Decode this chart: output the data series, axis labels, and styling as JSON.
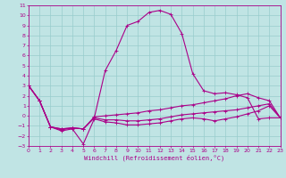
{
  "xlabel": "Windchill (Refroidissement éolien,°C)",
  "xlim": [
    0,
    23
  ],
  "ylim": [
    -3,
    11
  ],
  "xticks": [
    0,
    1,
    2,
    3,
    4,
    5,
    6,
    7,
    8,
    9,
    10,
    11,
    12,
    13,
    14,
    15,
    16,
    17,
    18,
    19,
    20,
    21,
    22,
    23
  ],
  "yticks": [
    -3,
    -2,
    -1,
    0,
    1,
    2,
    3,
    4,
    5,
    6,
    7,
    8,
    9,
    10,
    11
  ],
  "background_color": "#c0e4e4",
  "grid_color": "#98cccc",
  "line_color": "#aa0088",
  "curves": [
    {
      "x": [
        0,
        1,
        2,
        3,
        4,
        5,
        6,
        7,
        8,
        9,
        10,
        11,
        12,
        13,
        14,
        15,
        16,
        17,
        18,
        19,
        20,
        21,
        22,
        23
      ],
      "y": [
        3.0,
        1.5,
        -1.1,
        -1.4,
        -1.2,
        -1.3,
        -0.2,
        4.5,
        6.5,
        9.0,
        9.4,
        10.3,
        10.5,
        10.1,
        8.2,
        4.2,
        2.5,
        2.2,
        2.3,
        2.1,
        1.8,
        -0.3,
        -0.2,
        -0.2
      ]
    },
    {
      "x": [
        0,
        1,
        2,
        3,
        4,
        5,
        6,
        7,
        8,
        9,
        10,
        11,
        12,
        13,
        14,
        15,
        16,
        17,
        18,
        19,
        20,
        21,
        22,
        23
      ],
      "y": [
        3.0,
        1.5,
        -1.1,
        -1.3,
        -1.2,
        -1.3,
        -0.1,
        0.0,
        0.1,
        0.2,
        0.3,
        0.5,
        0.6,
        0.8,
        1.0,
        1.1,
        1.3,
        1.5,
        1.7,
        2.0,
        2.2,
        1.8,
        1.5,
        -0.2
      ]
    },
    {
      "x": [
        0,
        1,
        2,
        3,
        4,
        5,
        6,
        7,
        8,
        9,
        10,
        11,
        12,
        13,
        14,
        15,
        16,
        17,
        18,
        19,
        20,
        21,
        22,
        23
      ],
      "y": [
        3.0,
        1.5,
        -1.1,
        -1.3,
        -1.2,
        -1.3,
        -0.2,
        -0.4,
        -0.4,
        -0.5,
        -0.5,
        -0.4,
        -0.3,
        -0.1,
        0.1,
        0.2,
        0.3,
        0.4,
        0.5,
        0.6,
        0.8,
        1.0,
        1.2,
        -0.2
      ]
    },
    {
      "x": [
        0,
        1,
        2,
        3,
        4,
        5,
        6,
        7,
        8,
        9,
        10,
        11,
        12,
        13,
        14,
        15,
        16,
        17,
        18,
        19,
        20,
        21,
        22,
        23
      ],
      "y": [
        3.0,
        1.5,
        -1.1,
        -1.5,
        -1.3,
        -2.8,
        -0.3,
        -0.6,
        -0.7,
        -0.9,
        -0.9,
        -0.8,
        -0.7,
        -0.5,
        -0.3,
        -0.2,
        -0.3,
        -0.5,
        -0.3,
        -0.1,
        0.2,
        0.5,
        1.0,
        -0.2
      ]
    }
  ]
}
